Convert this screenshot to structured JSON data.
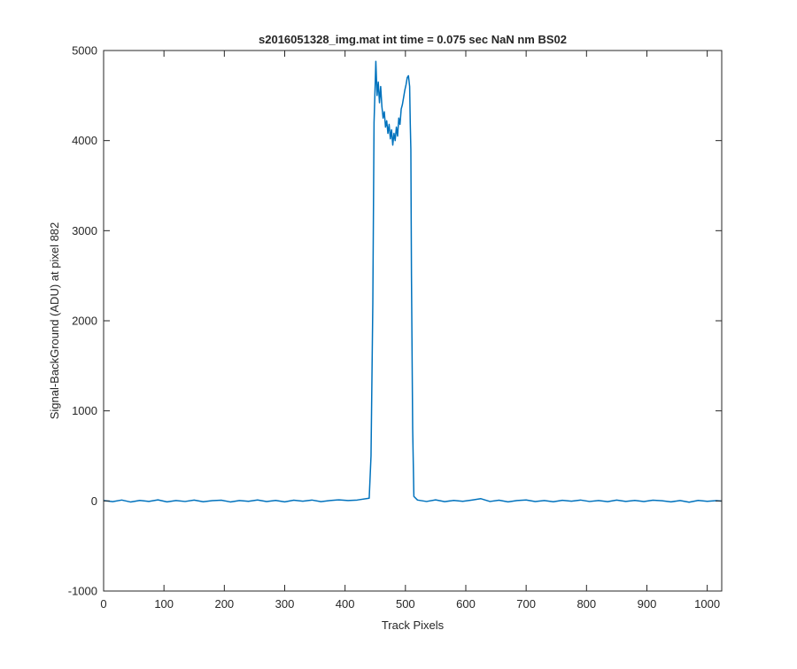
{
  "chart_data": {
    "type": "line",
    "title": "s2016051328_img.mat int time = 0.075 sec  NaN nm BS02",
    "xlabel": "Track Pixels",
    "ylabel": "Signal-BackGround (ADU) at pixel 882",
    "xlim": [
      0,
      1024
    ],
    "ylim": [
      -1000,
      5000
    ],
    "xticks": [
      0,
      100,
      200,
      300,
      400,
      500,
      600,
      700,
      800,
      900,
      1000
    ],
    "yticks": [
      -1000,
      0,
      1000,
      2000,
      3000,
      4000,
      5000
    ],
    "grid": false,
    "box": true,
    "series": [
      {
        "color": "#0072BD",
        "points": [
          [
            0,
            5
          ],
          [
            15,
            -8
          ],
          [
            30,
            10
          ],
          [
            45,
            -12
          ],
          [
            60,
            6
          ],
          [
            75,
            -5
          ],
          [
            90,
            12
          ],
          [
            105,
            -10
          ],
          [
            120,
            4
          ],
          [
            135,
            -6
          ],
          [
            150,
            9
          ],
          [
            165,
            -9
          ],
          [
            180,
            3
          ],
          [
            195,
            8
          ],
          [
            210,
            -11
          ],
          [
            225,
            5
          ],
          [
            240,
            -4
          ],
          [
            255,
            11
          ],
          [
            270,
            -7
          ],
          [
            285,
            6
          ],
          [
            300,
            -10
          ],
          [
            315,
            8
          ],
          [
            330,
            -3
          ],
          [
            345,
            10
          ],
          [
            360,
            -8
          ],
          [
            375,
            4
          ],
          [
            390,
            12
          ],
          [
            405,
            5
          ],
          [
            420,
            10
          ],
          [
            440,
            30
          ],
          [
            443,
            500
          ],
          [
            446,
            2200
          ],
          [
            448,
            4200
          ],
          [
            450,
            4650
          ],
          [
            451,
            4880
          ],
          [
            453,
            4500
          ],
          [
            455,
            4650
          ],
          [
            457,
            4420
          ],
          [
            459,
            4600
          ],
          [
            461,
            4380
          ],
          [
            463,
            4250
          ],
          [
            465,
            4320
          ],
          [
            467,
            4150
          ],
          [
            469,
            4220
          ],
          [
            471,
            4080
          ],
          [
            473,
            4180
          ],
          [
            475,
            4020
          ],
          [
            477,
            4120
          ],
          [
            479,
            3950
          ],
          [
            481,
            4080
          ],
          [
            483,
            4000
          ],
          [
            485,
            4150
          ],
          [
            487,
            4050
          ],
          [
            489,
            4250
          ],
          [
            491,
            4180
          ],
          [
            493,
            4350
          ],
          [
            495,
            4400
          ],
          [
            497,
            4480
          ],
          [
            499,
            4560
          ],
          [
            501,
            4620
          ],
          [
            503,
            4700
          ],
          [
            505,
            4720
          ],
          [
            507,
            4600
          ],
          [
            508,
            4200
          ],
          [
            509,
            3900
          ],
          [
            510,
            2500
          ],
          [
            512,
            800
          ],
          [
            514,
            50
          ],
          [
            520,
            10
          ],
          [
            535,
            -6
          ],
          [
            550,
            12
          ],
          [
            565,
            -8
          ],
          [
            580,
            6
          ],
          [
            595,
            -4
          ],
          [
            610,
            10
          ],
          [
            625,
            25
          ],
          [
            640,
            -6
          ],
          [
            655,
            8
          ],
          [
            670,
            -10
          ],
          [
            685,
            5
          ],
          [
            700,
            11
          ],
          [
            715,
            -7
          ],
          [
            730,
            4
          ],
          [
            745,
            -9
          ],
          [
            760,
            7
          ],
          [
            775,
            -3
          ],
          [
            790,
            10
          ],
          [
            805,
            -6
          ],
          [
            820,
            5
          ],
          [
            835,
            -8
          ],
          [
            850,
            9
          ],
          [
            865,
            -5
          ],
          [
            880,
            6
          ],
          [
            895,
            -7
          ],
          [
            910,
            8
          ],
          [
            925,
            2
          ],
          [
            940,
            -10
          ],
          [
            955,
            5
          ],
          [
            970,
            -14
          ],
          [
            985,
            6
          ],
          [
            1000,
            -4
          ],
          [
            1015,
            3
          ],
          [
            1024,
            -2
          ]
        ]
      }
    ]
  }
}
